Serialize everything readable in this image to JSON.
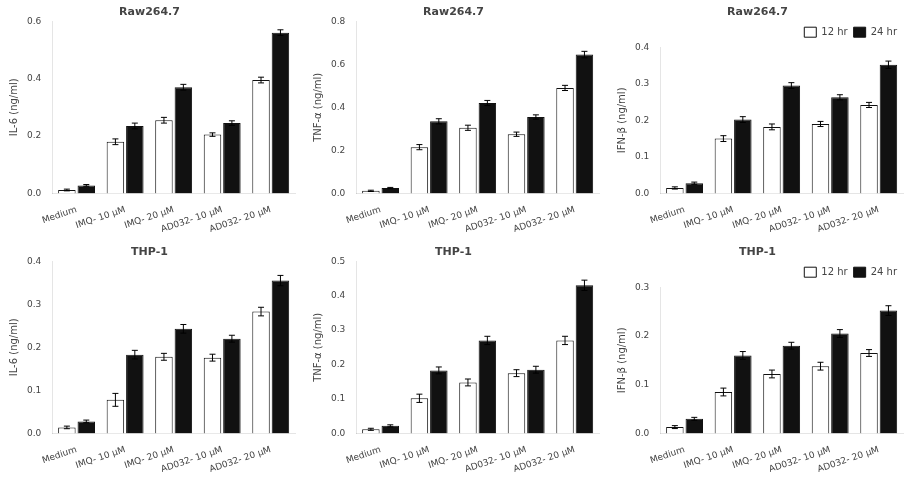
{
  "chart_data": [
    {
      "type": "bar",
      "title": "Raw264.7",
      "ylabel": "IL-6 (ng/ml)",
      "categories": [
        "Medium",
        "IMQ- 10 μM",
        "IMQ- 20 μM",
        "AD032- 10 μM",
        "AD032- 20 μM"
      ],
      "series": [
        {
          "name": "12 hr",
          "color": "#ffffff",
          "values": [
            0.012,
            0.18,
            0.255,
            0.205,
            0.395
          ],
          "errors": [
            0.003,
            0.01,
            0.01,
            0.006,
            0.01
          ]
        },
        {
          "name": "24 hr",
          "color": "#111111",
          "values": [
            0.028,
            0.235,
            0.37,
            0.245,
            0.56
          ],
          "errors": [
            0.003,
            0.01,
            0.01,
            0.008,
            0.01
          ]
        }
      ],
      "ylim": [
        0,
        0.6
      ],
      "yticks": [
        {
          "value": 0,
          "label": "0.0"
        },
        0.2,
        0.4,
        0.6
      ],
      "grid": false
    },
    {
      "type": "bar",
      "title": "Raw264.7",
      "ylabel": "TNF-α (ng/ml)",
      "categories": [
        "Medium",
        "IMQ- 10 μM",
        "IMQ- 20 μM",
        "AD032- 10 μM",
        "AD032- 20 μM"
      ],
      "series": [
        {
          "name": "12 hr",
          "color": "#ffffff",
          "values": [
            0.012,
            0.215,
            0.305,
            0.275,
            0.49
          ],
          "errors": [
            0.003,
            0.012,
            0.012,
            0.01,
            0.012
          ]
        },
        {
          "name": "24 hr",
          "color": "#111111",
          "values": [
            0.025,
            0.335,
            0.42,
            0.355,
            0.645
          ],
          "errors": [
            0.003,
            0.012,
            0.012,
            0.01,
            0.015
          ]
        }
      ],
      "ylim": [
        0,
        0.8
      ],
      "yticks": [
        {
          "value": 0,
          "label": "0.0"
        },
        0.2,
        0.4,
        0.6,
        0.8
      ],
      "grid": false
    },
    {
      "type": "bar",
      "title": "Raw264.7",
      "ylabel": "IFN-β (ng/ml)",
      "categories": [
        "Medium",
        "IMQ- 10 μM",
        "IMQ- 20 μM",
        "AD032- 10 μM",
        "AD032- 20 μM"
      ],
      "series": [
        {
          "name": "12 hr",
          "color": "#ffffff",
          "values": [
            0.015,
            0.15,
            0.182,
            0.19,
            0.242
          ],
          "errors": [
            0.003,
            0.008,
            0.008,
            0.007,
            0.007
          ]
        },
        {
          "name": "24 hr",
          "color": "#111111",
          "values": [
            0.028,
            0.202,
            0.295,
            0.263,
            0.352
          ],
          "errors": [
            0.003,
            0.008,
            0.008,
            0.007,
            0.01
          ]
        }
      ],
      "ylim": [
        0,
        0.4
      ],
      "yticks": [
        {
          "value": 0,
          "label": "0.0"
        },
        0.1,
        0.2,
        0.3,
        0.4
      ],
      "grid": false,
      "legend": "upper right"
    },
    {
      "type": "bar",
      "title": "THP-1",
      "ylabel": "IL-6 (ng/ml)",
      "categories": [
        "Medium",
        "IMQ- 10 μM",
        "IMQ- 20 μM",
        "AD032- 10 μM",
        "AD032- 20 μM"
      ],
      "series": [
        {
          "name": "12 hr",
          "color": "#ffffff",
          "values": [
            0.014,
            0.078,
            0.178,
            0.176,
            0.283
          ],
          "errors": [
            0.003,
            0.015,
            0.008,
            0.008,
            0.01
          ]
        },
        {
          "name": "24 hr",
          "color": "#111111",
          "values": [
            0.028,
            0.183,
            0.243,
            0.22,
            0.355
          ],
          "errors": [
            0.003,
            0.01,
            0.01,
            0.008,
            0.012
          ]
        }
      ],
      "ylim": [
        0,
        0.4
      ],
      "yticks": [
        {
          "value": 0,
          "label": "0.0"
        },
        0.1,
        0.2,
        0.3,
        0.4
      ],
      "grid": false
    },
    {
      "type": "bar",
      "title": "THP-1",
      "ylabel": "TNF-α (ng/ml)",
      "categories": [
        "Medium",
        "IMQ- 10 μM",
        "IMQ- 20 μM",
        "AD032- 10 μM",
        "AD032- 20 μM"
      ],
      "series": [
        {
          "name": "12 hr",
          "color": "#ffffff",
          "values": [
            0.012,
            0.102,
            0.148,
            0.175,
            0.27
          ],
          "errors": [
            0.003,
            0.012,
            0.01,
            0.01,
            0.012
          ]
        },
        {
          "name": "24 hr",
          "color": "#111111",
          "values": [
            0.022,
            0.183,
            0.27,
            0.185,
            0.43
          ],
          "errors": [
            0.003,
            0.01,
            0.012,
            0.01,
            0.015
          ]
        }
      ],
      "ylim": [
        0,
        0.5
      ],
      "yticks": [
        {
          "value": 0,
          "label": "0.0"
        },
        0.1,
        0.2,
        0.3,
        0.4,
        0.5
      ],
      "grid": false
    },
    {
      "type": "bar",
      "title": "THP-1",
      "ylabel": "IFN-β (ng/ml)",
      "categories": [
        "Medium",
        "IMQ- 10 μM",
        "IMQ- 20 μM",
        "AD032- 10 μM",
        "AD032- 20 μM"
      ],
      "series": [
        {
          "name": "12 hr",
          "color": "#ffffff",
          "values": [
            0.013,
            0.085,
            0.122,
            0.138,
            0.165
          ],
          "errors": [
            0.003,
            0.008,
            0.008,
            0.008,
            0.007
          ]
        },
        {
          "name": "24 hr",
          "color": "#111111",
          "values": [
            0.03,
            0.16,
            0.18,
            0.205,
            0.252
          ],
          "errors": [
            0.003,
            0.008,
            0.007,
            0.008,
            0.01
          ]
        }
      ],
      "ylim": [
        0,
        0.3
      ],
      "yticks": [
        {
          "value": 0,
          "label": "0.0"
        },
        0.1,
        0.2,
        0.3
      ],
      "grid": false,
      "legend": "upper right"
    }
  ]
}
